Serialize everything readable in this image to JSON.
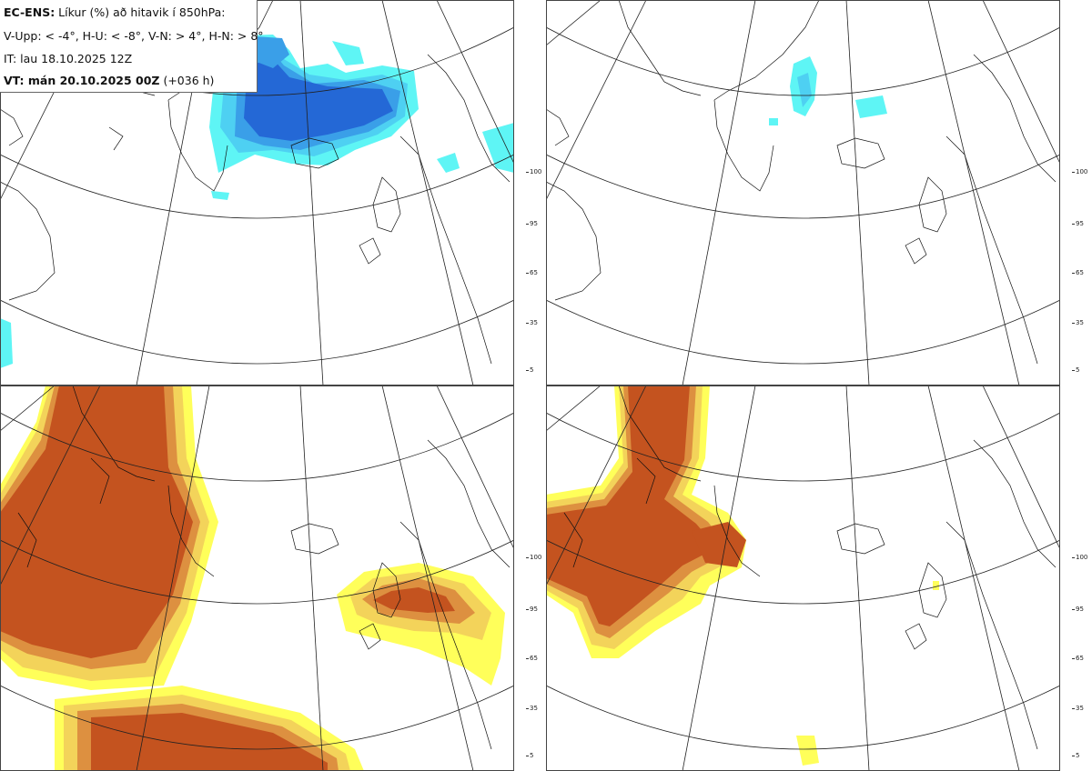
{
  "legend": {
    "line1_bold": "EC-ENS:",
    "line1_rest": " Líkur (%) að hitavik í 850hPa:",
    "line2": "V-Upp: < -4°, H-U: < -8°, V-N: > 4°, H-N: > 8°",
    "line3": "IT: lau 18.10.2025 12Z",
    "line4_bold": "VT: mán 20.10.2025 00Z",
    "line4_rest": " (+036 h)"
  },
  "colorbar": {
    "ticks": [
      "100",
      "95",
      "65",
      "35",
      "5"
    ],
    "cold_colors": [
      "#5ef5f5",
      "#4ed0f2",
      "#3a9fe8",
      "#2468d6"
    ],
    "warm_colors": [
      "#ffff5a",
      "#f3d35a",
      "#dd9040",
      "#c4531f"
    ]
  },
  "panels": [
    {
      "name": "V-Upp",
      "quantity": "probability temperature anomaly < -4°",
      "colormap": "cold"
    },
    {
      "name": "H-U",
      "quantity": "probability temperature anomaly < -8°",
      "colormap": "cold"
    },
    {
      "name": "V-N",
      "quantity": "probability temperature anomaly > 4°",
      "colormap": "warm"
    },
    {
      "name": "H-N",
      "quantity": "probability temperature anomaly > 8°",
      "colormap": "warm"
    }
  ]
}
